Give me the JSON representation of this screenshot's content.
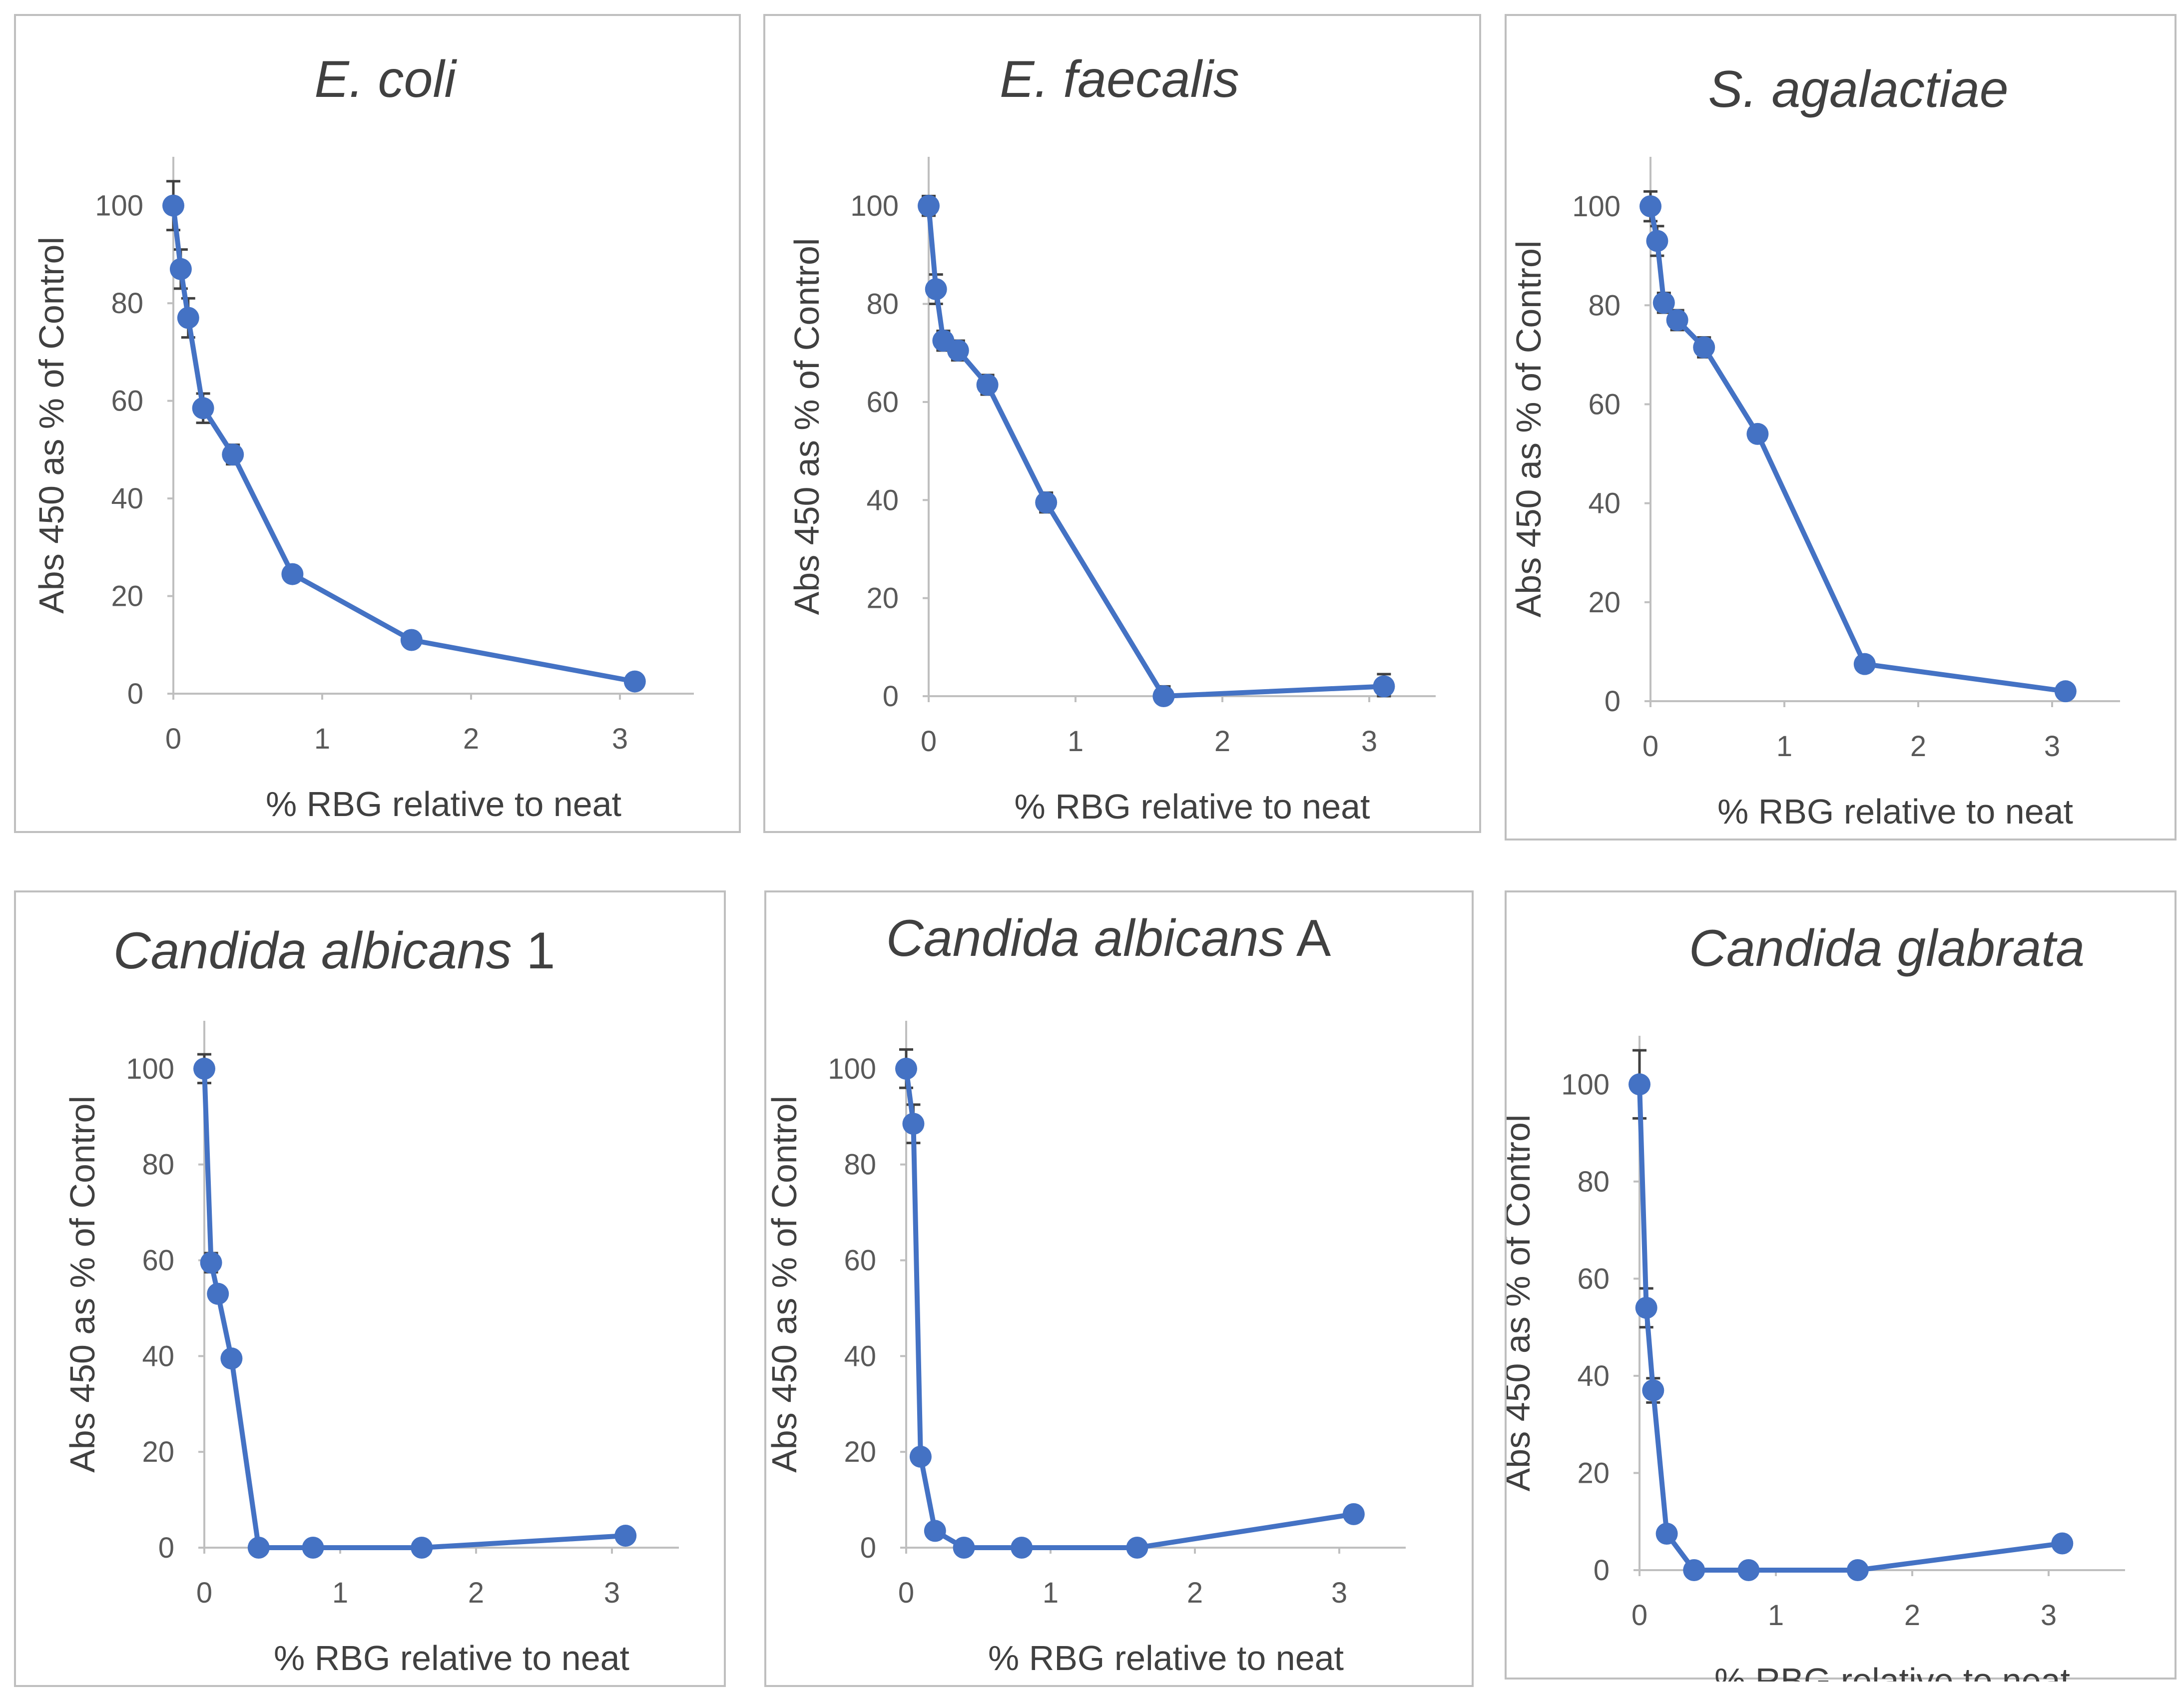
{
  "figure": {
    "xlabel": "% RBG relative to neat",
    "ylabel": "Abs 450 as % of Control",
    "series_color": "#4472C4"
  },
  "chart_data": [
    {
      "type": "line",
      "title": "E. coli",
      "title_italic": "E. coli",
      "title_plain": "",
      "xlabel": "% RBG relative to neat",
      "ylabel": "Abs 450 as % of Control",
      "x": [
        0,
        0.05,
        0.1,
        0.2,
        0.4,
        0.8,
        1.6,
        3.1
      ],
      "y": [
        100,
        87,
        77,
        58.5,
        49,
        24.5,
        11,
        2.5
      ],
      "yerr": [
        5,
        4,
        4,
        3,
        2,
        1,
        1,
        0.5
      ],
      "xlim": [
        0,
        3.5
      ],
      "ylim": [
        0,
        110
      ],
      "xticks": [
        0,
        1,
        2,
        3
      ],
      "yticks": [
        0,
        20,
        40,
        60,
        80,
        100
      ]
    },
    {
      "type": "line",
      "title": "E. faecalis",
      "title_italic": "E. faecalis",
      "title_plain": "",
      "xlabel": "% RBG relative to neat",
      "ylabel": "Abs 450 as % of Control",
      "x": [
        0,
        0.05,
        0.1,
        0.2,
        0.4,
        0.8,
        1.6,
        3.1
      ],
      "y": [
        100,
        83,
        72.5,
        70.5,
        63.5,
        39.5,
        0,
        2
      ],
      "yerr": [
        2,
        3,
        2,
        2,
        2,
        2,
        2,
        2.5
      ],
      "xlim": [
        0,
        3.5
      ],
      "ylim": [
        0,
        110
      ],
      "xticks": [
        0,
        1,
        2,
        3
      ],
      "yticks": [
        0,
        20,
        40,
        60,
        80,
        100
      ]
    },
    {
      "type": "line",
      "title": "S. agalactiae",
      "title_italic": "S. agalactiae",
      "title_plain": "",
      "xlabel": "% RBG relative to neat",
      "ylabel": "Abs 450 as % of Control",
      "x": [
        0,
        0.05,
        0.1,
        0.2,
        0.4,
        0.8,
        1.6,
        3.1
      ],
      "y": [
        100,
        93,
        80.5,
        77,
        71.5,
        54,
        7.5,
        2
      ],
      "yerr": [
        3,
        3,
        2,
        2,
        2,
        1,
        1,
        0.5
      ],
      "xlim": [
        0,
        3.5
      ],
      "ylim": [
        0,
        110
      ],
      "xticks": [
        0,
        1,
        2,
        3
      ],
      "yticks": [
        0,
        20,
        40,
        60,
        80,
        100
      ]
    },
    {
      "type": "line",
      "title": "Candida albicans 1",
      "title_italic": "Candida albicans",
      "title_plain": " 1",
      "xlabel": "% RBG relative to neat",
      "ylabel": "Abs 450 as % of Control",
      "x": [
        0,
        0.05,
        0.1,
        0.2,
        0.4,
        0.8,
        1.6,
        3.1
      ],
      "y": [
        100,
        59.5,
        53,
        39.5,
        0,
        0,
        0,
        2.5
      ],
      "yerr": [
        3,
        2,
        1,
        1,
        0.5,
        0.5,
        0.5,
        0.5
      ],
      "xlim": [
        0,
        3.5
      ],
      "ylim": [
        0,
        110
      ],
      "xticks": [
        0,
        1,
        2,
        3
      ],
      "yticks": [
        0,
        20,
        40,
        60,
        80,
        100
      ]
    },
    {
      "type": "line",
      "title": "Candida albicans A",
      "title_italic": "Candida albicans",
      "title_plain": " A",
      "xlabel": "% RBG relative to neat",
      "ylabel": "Abs 450 as % of Control",
      "x": [
        0,
        0.05,
        0.1,
        0.2,
        0.4,
        0.8,
        1.6,
        3.1
      ],
      "y": [
        100,
        88.5,
        19,
        3.5,
        0,
        0,
        0,
        7
      ],
      "yerr": [
        4,
        4,
        1,
        1,
        0.5,
        0.5,
        0.5,
        0.5
      ],
      "xlim": [
        0,
        3.5
      ],
      "ylim": [
        0,
        110
      ],
      "xticks": [
        0,
        1,
        2,
        3
      ],
      "yticks": [
        0,
        20,
        40,
        60,
        80,
        100
      ]
    },
    {
      "type": "line",
      "title": "Candida glabrata",
      "title_italic": "Candida glabrata",
      "title_plain": "",
      "xlabel": "% RBG relative to neat",
      "ylabel": "Abs 450 as % of Control",
      "x": [
        0,
        0.05,
        0.1,
        0.2,
        0.4,
        0.8,
        1.6,
        3.1
      ],
      "y": [
        100,
        54,
        37,
        7.5,
        0,
        0,
        0,
        5.5
      ],
      "yerr": [
        7,
        4,
        2.5,
        1,
        0.5,
        0.5,
        0.5,
        0.5
      ],
      "xlim": [
        0,
        3.5
      ],
      "ylim": [
        0,
        110
      ],
      "xticks": [
        0,
        1,
        2,
        3
      ],
      "yticks": [
        0,
        20,
        40,
        60,
        80,
        100
      ]
    }
  ]
}
